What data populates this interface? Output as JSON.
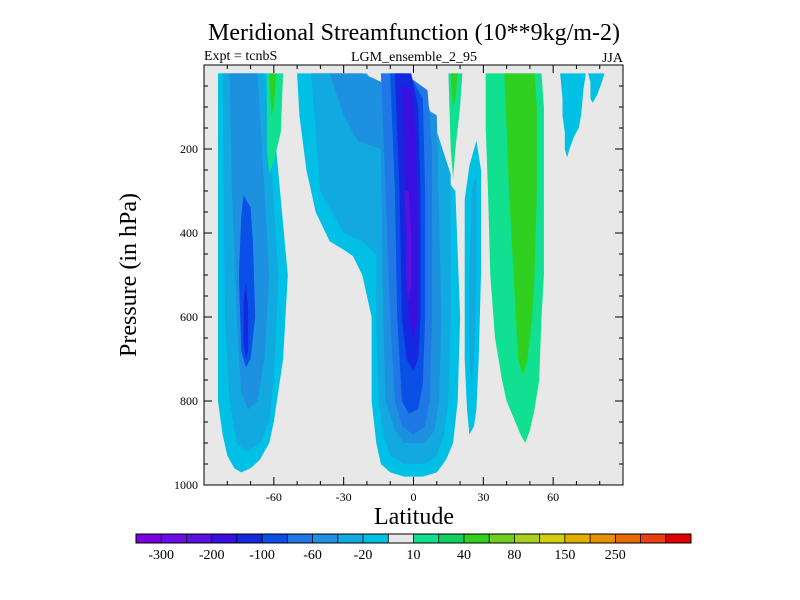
{
  "chart_data": {
    "type": "contour",
    "title": "Meridional Streamfunction (10**9kg/m-2)",
    "subtitle_left": "Expt = tcnbS",
    "subtitle_center": "LGM_ensemble_2_95",
    "subtitle_right": "JJA",
    "xlabel": "Latitude",
    "ylabel": "Pressure (in hPa)",
    "xlim": [
      -90,
      90
    ],
    "ylim": [
      1000,
      0
    ],
    "x_ticks": [
      -60,
      -30,
      0,
      30,
      60
    ],
    "x_tick_labels": [
      "-60",
      "-30",
      "0",
      "30",
      "60"
    ],
    "y_ticks": [
      200,
      400,
      600,
      800,
      1000
    ],
    "y_tick_labels": [
      "200",
      "400",
      "600",
      "800",
      "1000"
    ],
    "colorbar": {
      "colors": [
        "#7b00e0",
        "#6a0fe8",
        "#5a10e0",
        "#3a10e0",
        "#1428e0",
        "#0a50e6",
        "#1f78e6",
        "#1e90e0",
        "#12a8e0",
        "#00c0e6",
        "#e8e8e8",
        "#10e090",
        "#10d060",
        "#30d020",
        "#70d020",
        "#a8d020",
        "#d0d010",
        "#e0b000",
        "#e89000",
        "#e86a00",
        "#e84010",
        "#e00000"
      ],
      "labels": [
        "-300",
        "-200",
        "-100",
        "-60",
        "-20",
        "10",
        "40",
        "80",
        "150",
        "250"
      ]
    },
    "regions": [
      {
        "name": "sh-cell-outer",
        "level": -20,
        "color": "#00c0e6",
        "points": [
          [
            -84,
            20
          ],
          [
            -62,
            20
          ],
          [
            -58,
            260
          ],
          [
            -54,
            500
          ],
          [
            -56,
            700
          ],
          [
            -60,
            850
          ],
          [
            -62,
            900
          ],
          [
            -66,
            940
          ],
          [
            -70,
            960
          ],
          [
            -74,
            970
          ],
          [
            -77,
            960
          ],
          [
            -80,
            930
          ],
          [
            -82,
            880
          ],
          [
            -84,
            800
          ]
        ]
      },
      {
        "name": "sh-cell-mid",
        "level": -60,
        "color": "#12a8e0",
        "points": [
          [
            -82,
            20
          ],
          [
            -64,
            20
          ],
          [
            -61,
            250
          ],
          [
            -58,
            500
          ],
          [
            -60,
            750
          ],
          [
            -62,
            850
          ],
          [
            -66,
            900
          ],
          [
            -72,
            920
          ],
          [
            -76,
            900
          ],
          [
            -79,
            800
          ],
          [
            -81,
            600
          ]
        ]
      },
      {
        "name": "sh-cell-inner",
        "level": -100,
        "color": "#1e90e0",
        "points": [
          [
            -79,
            20
          ],
          [
            -67,
            20
          ],
          [
            -64,
            300
          ],
          [
            -62,
            500
          ],
          [
            -64,
            700
          ],
          [
            -67,
            800
          ],
          [
            -71,
            820
          ],
          [
            -74,
            780
          ],
          [
            -76,
            600
          ],
          [
            -78,
            300
          ]
        ]
      },
      {
        "name": "sh-cell-core",
        "level": -200,
        "color": "#0a50e6",
        "points": [
          [
            -73,
            310
          ],
          [
            -70,
            340
          ],
          [
            -69,
            420
          ],
          [
            -68,
            600
          ],
          [
            -70,
            700
          ],
          [
            -72,
            720
          ],
          [
            -74,
            680
          ],
          [
            -75,
            500
          ],
          [
            -74,
            360
          ]
        ]
      },
      {
        "name": "sh-cell-core-inner",
        "level": -300,
        "color": "#1428e0",
        "points": [
          [
            -72,
            520
          ],
          [
            -71,
            580
          ],
          [
            -71,
            680
          ],
          [
            -72,
            700
          ],
          [
            -73,
            660
          ],
          [
            -73,
            560
          ]
        ]
      },
      {
        "name": "hadley-outer",
        "level": -20,
        "color": "#00c0e6",
        "points": [
          [
            -50,
            20
          ],
          [
            -20,
            20
          ],
          [
            -10,
            100
          ],
          [
            0,
            180
          ],
          [
            10,
            240
          ],
          [
            18,
            300
          ],
          [
            20,
            600
          ],
          [
            19,
            800
          ],
          [
            17,
            900
          ],
          [
            14,
            940
          ],
          [
            10,
            970
          ],
          [
            4,
            980
          ],
          [
            -4,
            980
          ],
          [
            -10,
            970
          ],
          [
            -14,
            950
          ],
          [
            -16,
            900
          ],
          [
            -18,
            800
          ],
          [
            -18,
            600
          ],
          [
            -22,
            500
          ],
          [
            -26,
            455
          ],
          [
            -30,
            440
          ],
          [
            -36,
            420
          ],
          [
            -42,
            350
          ],
          [
            -46,
            250
          ],
          [
            -49,
            120
          ]
        ]
      },
      {
        "name": "hadley-l60",
        "level": -60,
        "color": "#12a8e0",
        "points": [
          [
            -44,
            20
          ],
          [
            -30,
            20
          ],
          [
            -24,
            40
          ],
          [
            -14,
            60
          ],
          [
            -8,
            80
          ],
          [
            6,
            90
          ],
          [
            16,
            260
          ],
          [
            16,
            600
          ],
          [
            15,
            800
          ],
          [
            13,
            880
          ],
          [
            10,
            930
          ],
          [
            5,
            950
          ],
          [
            -4,
            950
          ],
          [
            -10,
            930
          ],
          [
            -13,
            880
          ],
          [
            -15,
            800
          ],
          [
            -16,
            600
          ],
          [
            -16,
            450
          ],
          [
            -22,
            420
          ],
          [
            -30,
            400
          ],
          [
            -40,
            300
          ]
        ]
      },
      {
        "name": "hadley-l100",
        "level": -100,
        "color": "#1e90e0",
        "points": [
          [
            -36,
            20
          ],
          [
            -22,
            20
          ],
          [
            -14,
            40
          ],
          [
            -8,
            60
          ],
          [
            -2,
            80
          ],
          [
            10,
            120
          ],
          [
            12,
            600
          ],
          [
            11,
            800
          ],
          [
            9,
            870
          ],
          [
            5,
            900
          ],
          [
            -4,
            900
          ],
          [
            -8,
            870
          ],
          [
            -12,
            800
          ],
          [
            -13,
            600
          ],
          [
            -14,
            200
          ],
          [
            -24,
            180
          ],
          [
            -30,
            120
          ]
        ]
      },
      {
        "name": "hadley-l150",
        "level": -150,
        "color": "#1f78e6",
        "points": [
          [
            -14,
            20
          ],
          [
            -4,
            20
          ],
          [
            6,
            60
          ],
          [
            8,
            200
          ],
          [
            8,
            600
          ],
          [
            7,
            800
          ],
          [
            5,
            860
          ],
          [
            0,
            880
          ],
          [
            -5,
            860
          ],
          [
            -8,
            800
          ],
          [
            -10,
            600
          ],
          [
            -12,
            300
          ]
        ]
      },
      {
        "name": "hadley-l200",
        "level": -200,
        "color": "#0a50e6",
        "points": [
          [
            -10,
            20
          ],
          [
            -2,
            20
          ],
          [
            4,
            80
          ],
          [
            5,
            300
          ],
          [
            5,
            600
          ],
          [
            4,
            760
          ],
          [
            2,
            820
          ],
          [
            -2,
            830
          ],
          [
            -5,
            800
          ],
          [
            -7,
            600
          ],
          [
            -8,
            300
          ]
        ]
      },
      {
        "name": "hadley-l250",
        "level": -250,
        "color": "#1428e0",
        "points": [
          [
            -8,
            20
          ],
          [
            -1,
            20
          ],
          [
            2,
            100
          ],
          [
            3,
            300
          ],
          [
            3,
            600
          ],
          [
            2,
            700
          ],
          [
            0,
            730
          ],
          [
            -3,
            700
          ],
          [
            -5,
            600
          ],
          [
            -6,
            300
          ]
        ]
      },
      {
        "name": "hadley-l300",
        "level": -300,
        "color": "#3a10e0",
        "points": [
          [
            -5,
            50
          ],
          [
            0,
            60
          ],
          [
            1,
            200
          ],
          [
            2,
            400
          ],
          [
            2,
            600
          ],
          [
            0,
            650
          ],
          [
            -2,
            600
          ],
          [
            -3,
            400
          ]
        ]
      },
      {
        "name": "hadley-core",
        "level": -400,
        "color": "#5a10e0",
        "points": [
          [
            -4,
            300
          ],
          [
            -2,
            300
          ],
          [
            -1,
            400
          ],
          [
            -1,
            520
          ],
          [
            -2,
            560
          ],
          [
            -3,
            520
          ],
          [
            -3,
            400
          ]
        ]
      },
      {
        "name": "ferrel-south-green",
        "level": 10,
        "color": "#10e090",
        "points": [
          [
            -63,
            20
          ],
          [
            -56,
            20
          ],
          [
            -57,
            160
          ],
          [
            -60,
            230
          ],
          [
            -62,
            260
          ],
          [
            -63,
            200
          ]
        ]
      },
      {
        "name": "ferrel-south-green-inner",
        "level": 40,
        "color": "#30d020",
        "points": [
          [
            -62,
            20
          ],
          [
            -59,
            20
          ],
          [
            -60,
            100
          ],
          [
            -61,
            120
          ]
        ]
      },
      {
        "name": "eq-green-spike",
        "level": 10,
        "color": "#10e090",
        "points": [
          [
            15,
            20
          ],
          [
            21,
            20
          ],
          [
            20,
            100
          ],
          [
            18,
            200
          ],
          [
            17,
            270
          ],
          [
            16,
            200
          ]
        ]
      },
      {
        "name": "eq-green-spike-inner",
        "level": 40,
        "color": "#30d020",
        "points": [
          [
            16,
            20
          ],
          [
            19,
            20
          ],
          [
            18,
            80
          ],
          [
            17,
            100
          ]
        ]
      },
      {
        "name": "mid-blue-tongue",
        "level": -20,
        "color": "#00c0e6",
        "points": [
          [
            24,
            240
          ],
          [
            27,
            180
          ],
          [
            29,
            250
          ],
          [
            29,
            500
          ],
          [
            28,
            700
          ],
          [
            27,
            820
          ],
          [
            26,
            860
          ],
          [
            24,
            880
          ],
          [
            23,
            820
          ],
          [
            22,
            700
          ],
          [
            22,
            500
          ],
          [
            22,
            320
          ]
        ]
      },
      {
        "name": "mid-blue-tongue-inner",
        "level": -60,
        "color": "#12a8e0",
        "points": [
          [
            25,
            300
          ],
          [
            27,
            260
          ],
          [
            27,
            500
          ],
          [
            26,
            700
          ],
          [
            25,
            760
          ],
          [
            24,
            700
          ],
          [
            24,
            500
          ]
        ]
      },
      {
        "name": "nh-ferrel-outer",
        "level": 10,
        "color": "#10e090",
        "points": [
          [
            31,
            20
          ],
          [
            55,
            20
          ],
          [
            56,
            100
          ],
          [
            56,
            500
          ],
          [
            55,
            600
          ],
          [
            54,
            750
          ],
          [
            52,
            820
          ],
          [
            50,
            870
          ],
          [
            48,
            900
          ],
          [
            46,
            880
          ],
          [
            43,
            840
          ],
          [
            40,
            800
          ],
          [
            38,
            750
          ],
          [
            35,
            650
          ],
          [
            33,
            500
          ],
          [
            32,
            300
          ],
          [
            31,
            150
          ]
        ]
      },
      {
        "name": "nh-ferrel-inner",
        "level": 40,
        "color": "#30d020",
        "points": [
          [
            39,
            20
          ],
          [
            52,
            20
          ],
          [
            53,
            100
          ],
          [
            53,
            300
          ],
          [
            52,
            500
          ],
          [
            51,
            600
          ],
          [
            49,
            700
          ],
          [
            47,
            740
          ],
          [
            45,
            700
          ],
          [
            44,
            600
          ],
          [
            43,
            500
          ],
          [
            41,
            300
          ],
          [
            40,
            150
          ]
        ]
      },
      {
        "name": "polar-blue",
        "level": -20,
        "color": "#00c0e6",
        "points": [
          [
            63,
            20
          ],
          [
            74,
            20
          ],
          [
            73,
            60
          ],
          [
            72,
            120
          ],
          [
            71,
            150
          ],
          [
            69,
            170
          ],
          [
            67,
            200
          ],
          [
            66,
            220
          ],
          [
            65,
            200
          ],
          [
            65,
            160
          ],
          [
            64,
            120
          ],
          [
            64,
            80
          ]
        ]
      },
      {
        "name": "polar-blue-far",
        "level": -20,
        "color": "#00c0e6",
        "points": [
          [
            75,
            20
          ],
          [
            82,
            20
          ],
          [
            81,
            40
          ],
          [
            79,
            70
          ],
          [
            77,
            90
          ],
          [
            76,
            80
          ],
          [
            76,
            40
          ]
        ]
      }
    ]
  }
}
